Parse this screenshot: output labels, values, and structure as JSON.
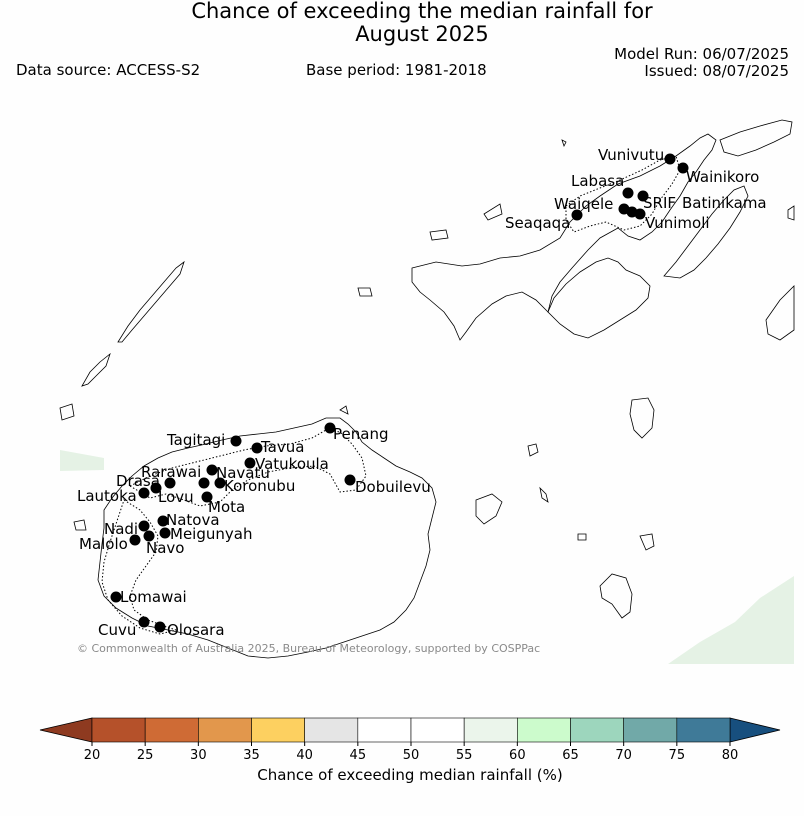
{
  "header": {
    "title_line1": "Chance of exceeding the median rainfall for",
    "title_line2": "August 2025",
    "data_source": "Data source: ACCESS-S2",
    "base_period": "Base period: 1981-2018",
    "model_run": "Model Run: 06/07/2025",
    "issued": "Issued: 08/07/2025"
  },
  "map": {
    "credit": "© Commonwealth of Australia 2025, Bureau of Meteorology, supported by COSPPac",
    "stations": [
      {
        "name": "Vunivutu",
        "id": "vunivutu"
      },
      {
        "name": "Wainikoro",
        "id": "wainikoro"
      },
      {
        "name": "Labasa",
        "id": "labasa"
      },
      {
        "name": "SRIF",
        "id": "srif"
      },
      {
        "name": "Batinikama",
        "id": "batinikama"
      },
      {
        "name": "Waiqele",
        "id": "waiqele"
      },
      {
        "name": "Seaqaqa",
        "id": "seaqaqa"
      },
      {
        "name": "Vunimoli",
        "id": "vunimoli"
      },
      {
        "name": "Tagitagi",
        "id": "tagitagi"
      },
      {
        "name": "Tavua",
        "id": "tavua"
      },
      {
        "name": "Penang",
        "id": "penang"
      },
      {
        "name": "Vatukoula",
        "id": "vatukoula"
      },
      {
        "name": "Rarawai",
        "id": "rarawai"
      },
      {
        "name": "Navatu",
        "id": "navatu"
      },
      {
        "name": "Drasa",
        "id": "drasa"
      },
      {
        "name": "Koronubu",
        "id": "koronubu"
      },
      {
        "name": "Dobuilevu",
        "id": "dobuilevu"
      },
      {
        "name": "Lautoka",
        "id": "lautoka"
      },
      {
        "name": "Lovu",
        "id": "lovu"
      },
      {
        "name": "Mota",
        "id": "mota"
      },
      {
        "name": "Natova",
        "id": "natova"
      },
      {
        "name": "Nadi",
        "id": "nadi"
      },
      {
        "name": "Meigunyah",
        "id": "meigunyah"
      },
      {
        "name": "Malolo",
        "id": "malolo"
      },
      {
        "name": "Navo",
        "id": "navo"
      },
      {
        "name": "Lomawai",
        "id": "lomawai"
      },
      {
        "name": "Cuvu",
        "id": "cuvu"
      },
      {
        "name": "Olosara",
        "id": "olosara"
      }
    ]
  },
  "legend": {
    "label": "Chance of exceeding median rainfall (%)",
    "ticks": [
      "20",
      "25",
      "30",
      "35",
      "40",
      "45",
      "50",
      "55",
      "60",
      "65",
      "70",
      "75",
      "80"
    ],
    "colors": [
      "#b5512a",
      "#cf6b35",
      "#e2974c",
      "#fdd060",
      "#e5e5e5",
      "#ffffff",
      "#ffffff",
      "#ebf5eb",
      "#ccfbcc",
      "#9dd6bd",
      "#71a9a8",
      "#3f7a98"
    ],
    "low_color": "#8e3a20",
    "high_color": "#174f7e",
    "shade_color": "#e5f2e5"
  }
}
